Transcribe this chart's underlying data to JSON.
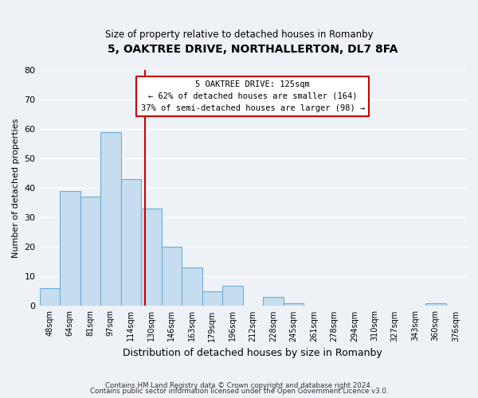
{
  "title": "5, OAKTREE DRIVE, NORTHALLERTON, DL7 8FA",
  "subtitle": "Size of property relative to detached houses in Romanby",
  "xlabel": "Distribution of detached houses by size in Romanby",
  "ylabel": "Number of detached properties",
  "bar_color": "#c5ddef",
  "bar_edge_color": "#6aaed6",
  "background_color": "#eef2f7",
  "grid_color": "#ffffff",
  "bin_labels": [
    "48sqm",
    "64sqm",
    "81sqm",
    "97sqm",
    "114sqm",
    "130sqm",
    "146sqm",
    "163sqm",
    "179sqm",
    "196sqm",
    "212sqm",
    "228sqm",
    "245sqm",
    "261sqm",
    "278sqm",
    "294sqm",
    "310sqm",
    "327sqm",
    "343sqm",
    "360sqm",
    "376sqm"
  ],
  "bar_heights": [
    6,
    39,
    37,
    59,
    43,
    33,
    20,
    13,
    5,
    7,
    0,
    3,
    1,
    0,
    0,
    0,
    0,
    0,
    0,
    1,
    0
  ],
  "ylim": [
    0,
    80
  ],
  "yticks": [
    0,
    10,
    20,
    30,
    40,
    50,
    60,
    70,
    80
  ],
  "vline_color": "#cc0000",
  "box_text_line1": "5 OAKTREE DRIVE: 125sqm",
  "box_text_line2": "← 62% of detached houses are smaller (164)",
  "box_text_line3": "37% of semi-detached houses are larger (98) →",
  "footer_line1": "Contains HM Land Registry data © Crown copyright and database right 2024.",
  "footer_line2": "Contains public sector information licensed under the Open Government Licence v3.0."
}
